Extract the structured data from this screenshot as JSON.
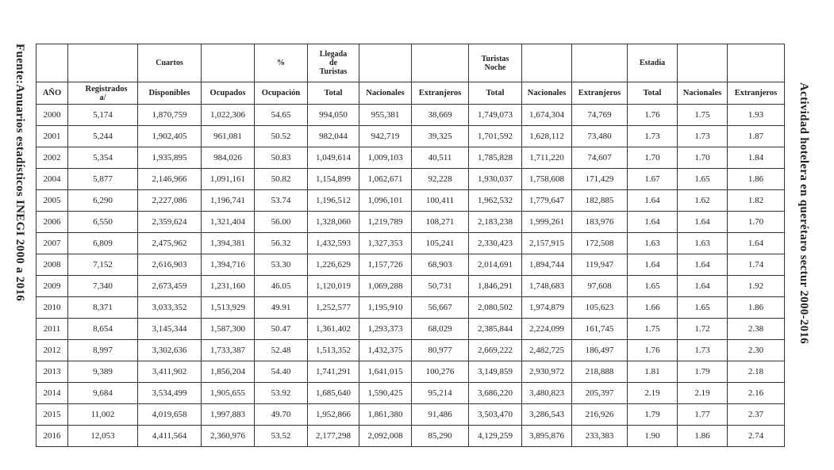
{
  "source": "Fuente:Anuarios estadísticos INEGI 2000 a 2016",
  "title": "Actividad hotelera en querétaro sectur 2000-2016",
  "header": {
    "row1": [
      null,
      null,
      "Cuartos",
      null,
      "%",
      "Llegada de Turistas",
      null,
      null,
      "Turistas Noche",
      null,
      null,
      "Estadía",
      null,
      null
    ],
    "row2": [
      "AÑO",
      "Registrados a/",
      "Disponibles",
      "Ocupados",
      "Ocupación",
      "Total",
      "Nacionales",
      "Extranjeros",
      "Total",
      "Nacionales",
      "Extranjeros",
      "Total",
      "Nacionales",
      "Extranjeros"
    ]
  },
  "table": {
    "rows": [
      [
        "2000",
        "5,174",
        "1,870,759",
        "1,022,306",
        "54.65",
        "994,050",
        "955,381",
        "38,669",
        "1,749,073",
        "1,674,304",
        "74,769",
        "1.76",
        "1.75",
        "1.93"
      ],
      [
        "2001",
        "5,244",
        "1,902,405",
        "961,081",
        "50.52",
        "982,044",
        "942,719",
        "39,325",
        "1,701,592",
        "1,628,112",
        "73,480",
        "1.73",
        "1.73",
        "1.87"
      ],
      [
        "2002",
        "5,354",
        "1,935,895",
        "984,026",
        "50.83",
        "1,049,614",
        "1,009,103",
        "40,511",
        "1,785,828",
        "1,711,220",
        "74,607",
        "1.70",
        "1.70",
        "1.84"
      ],
      [
        "2004",
        "5,877",
        "2,146,966",
        "1,091,161",
        "50.82",
        "1,154,899",
        "1,062,671",
        "92,228",
        "1,930,037",
        "1,758,608",
        "171,429",
        "1.67",
        "1.65",
        "1.86"
      ],
      [
        "2005",
        "6,290",
        "2,227,086",
        "1,196,741",
        "53.74",
        "1,196,512",
        "1,096,101",
        "100,411",
        "1,962,532",
        "1,779,647",
        "182,885",
        "1.64",
        "1.62",
        "1.82"
      ],
      [
        "2006",
        "6,550",
        "2,359,624",
        "1,321,404",
        "56.00",
        "1,328,060",
        "1,219,789",
        "108,271",
        "2,183,238",
        "1,999,261",
        "183,976",
        "1.64",
        "1.64",
        "1.70"
      ],
      [
        "2007",
        "6,809",
        "2,475,962",
        "1,394,381",
        "56.32",
        "1,432,593",
        "1,327,353",
        "105,241",
        "2,330,423",
        "2,157,915",
        "172,508",
        "1.63",
        "1.63",
        "1.64"
      ],
      [
        "2008",
        "7,152",
        "2,616,903",
        "1,394,716",
        "53.30",
        "1,226,629",
        "1,157,726",
        "68,903",
        "2,014,691",
        "1,894,744",
        "119,947",
        "1.64",
        "1.64",
        "1.74"
      ],
      [
        "2009",
        "7,340",
        "2,673,459",
        "1,231,160",
        "46.05",
        "1,120,019",
        "1,069,288",
        "50,731",
        "1,846,291",
        "1,748,683",
        "97,608",
        "1.65",
        "1.64",
        "1.92"
      ],
      [
        "2010",
        "8,371",
        "3,033,352",
        "1,513,929",
        "49.91",
        "1,252,577",
        "1,195,910",
        "56,667",
        "2,080,502",
        "1,974,879",
        "105,623",
        "1.66",
        "1.65",
        "1.86"
      ],
      [
        "2011",
        "8,654",
        "3,145,344",
        "1,587,300",
        "50.47",
        "1,361,402",
        "1,293,373",
        "68,029",
        "2,385,844",
        "2,224,099",
        "161,745",
        "1.75",
        "1.72",
        "2.38"
      ],
      [
        "2012",
        "8,997",
        "3,302,636",
        "1,733,387",
        "52.48",
        "1,513,352",
        "1,432,375",
        "80,977",
        "2,669,222",
        "2,482,725",
        "186,497",
        "1.76",
        "1.73",
        "2.30"
      ],
      [
        "2013",
        "9,389",
        "3,411,902",
        "1,856,204",
        "54.40",
        "1,741,291",
        "1,641,015",
        "100,276",
        "3,149,859",
        "2,930,972",
        "218,888",
        "1.81",
        "1.79",
        "2.18"
      ],
      [
        "2014",
        "9,684",
        "3,534,499",
        "1,905,655",
        "53.92",
        "1,685,640",
        "1,590,425",
        "95,214",
        "3,686,220",
        "3,480,823",
        "205,397",
        "2.19",
        "2.19",
        "2.16"
      ],
      [
        "2015",
        "11,002",
        "4,019,658",
        "1,997,883",
        "49.70",
        "1,952,866",
        "1,861,380",
        "91,486",
        "3,503,470",
        "3,286,543",
        "216,926",
        "1.79",
        "1.77",
        "2.37"
      ],
      [
        "2016",
        "12,053",
        "4,411,564",
        "2,360,976",
        "53.52",
        "2,177,298",
        "2,092,008",
        "85,290",
        "4,129,259",
        "3,895,876",
        "233,383",
        "1.90",
        "1.86",
        "2.74"
      ]
    ]
  }
}
